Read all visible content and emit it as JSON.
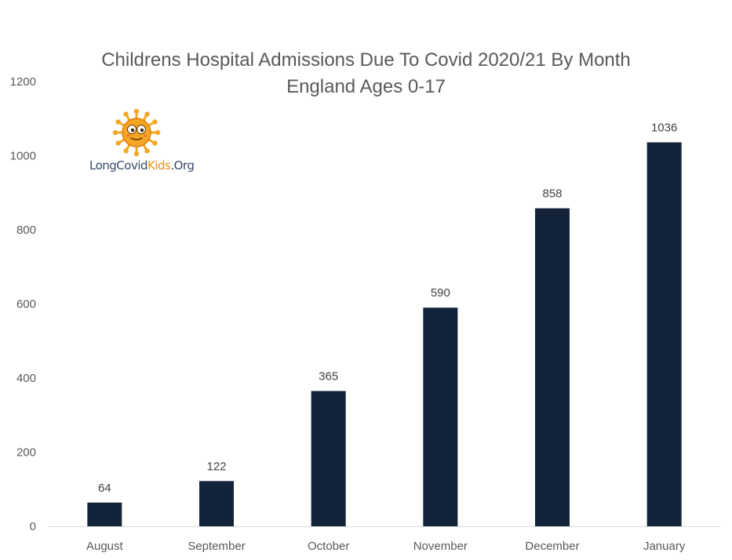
{
  "chart_data": {
    "type": "bar",
    "title": [
      "Childrens Hospital Admissions Due To Covid 2020/21 By Month",
      "England Ages 0-17"
    ],
    "xlabel": "",
    "ylabel": "",
    "categories": [
      "August",
      "September",
      "October",
      "November",
      "December",
      "January"
    ],
    "values": [
      64,
      122,
      365,
      590,
      858,
      1036
    ],
    "ylim": [
      0,
      1200
    ],
    "yticks": [
      0,
      200,
      400,
      600,
      800,
      1000,
      1200
    ],
    "grid": false,
    "legend": "none",
    "data_labels": true,
    "colors": {
      "bar": "#13233a",
      "axis_text": "#595959",
      "axis_line": "#d9d9d9"
    }
  },
  "logo": {
    "icon": "virus-mascot-icon",
    "text_main": "LongCovid",
    "text_accent": "Kids",
    "text_suffix": ".Org",
    "colors": {
      "main": "#364a67",
      "accent": "#e69024",
      "virus": "#f5a623"
    }
  }
}
